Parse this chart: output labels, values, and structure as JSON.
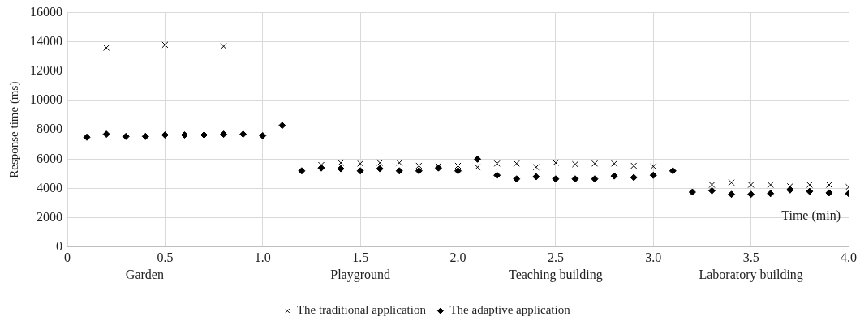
{
  "chart_data": {
    "type": "scatter",
    "xlabel": "Time (min)",
    "ylabel": "Response time (ms)",
    "xlim": [
      0,
      4
    ],
    "xticks": [
      0,
      0.5,
      {
        "value": 1,
        "label": "1.0"
      },
      1.5,
      {
        "value": 2,
        "label": "2.0"
      },
      2.5,
      {
        "value": 3,
        "label": "3.0"
      },
      3.5,
      {
        "value": 4,
        "label": "4.0"
      }
    ],
    "ylim": [
      0,
      16000
    ],
    "yticks": [
      0,
      2000,
      4000,
      6000,
      8000,
      10000,
      12000,
      14000,
      16000
    ],
    "grid": true,
    "legend": "bottom",
    "annotations": [
      "Garden",
      "Playground",
      "Teaching building",
      "Laboratory building"
    ],
    "series": [
      {
        "name": "The adaptive application",
        "color": "#000000",
        "marker": "diamond",
        "x": [
          0.1,
          0.2,
          0.3,
          0.4,
          0.5,
          0.6,
          0.7,
          0.8,
          0.9,
          1.0,
          1.1,
          1.2,
          1.3,
          1.4,
          1.5,
          1.6,
          1.7,
          1.8,
          1.9,
          2.0,
          2.1,
          2.2,
          2.3,
          2.4,
          2.5,
          2.6,
          2.7,
          2.8,
          2.9,
          3.0,
          3.1,
          3.2,
          3.3,
          3.4,
          3.5,
          3.6,
          3.7,
          3.8,
          3.9,
          4.0
        ],
        "values": [
          7500,
          7700,
          7550,
          7550,
          7650,
          7650,
          7650,
          7700,
          7700,
          7600,
          8300,
          5200,
          5400,
          5350,
          5200,
          5350,
          5200,
          5200,
          5400,
          5200,
          6000,
          4900,
          4650,
          4800,
          4650,
          4650,
          4650,
          4850,
          4750,
          4900,
          5200,
          3750,
          3850,
          3600,
          3600,
          3650,
          3900,
          3800,
          3700,
          3650
        ]
      },
      {
        "name": "The traditional application",
        "color": "#000000",
        "marker": "cross",
        "x": [
          0.2,
          0.5,
          0.8,
          1.3,
          1.4,
          1.5,
          1.6,
          1.7,
          1.8,
          1.9,
          2.0,
          2.1,
          2.2,
          2.3,
          2.4,
          2.5,
          2.6,
          2.7,
          2.8,
          2.9,
          3.0,
          3.3,
          3.4,
          3.5,
          3.6,
          3.7,
          3.8,
          3.9,
          4.0
        ],
        "values": [
          13600,
          13800,
          13700,
          5600,
          5750,
          5700,
          5750,
          5750,
          5550,
          5550,
          5550,
          5450,
          5700,
          5700,
          5450,
          5750,
          5650,
          5700,
          5700,
          5550,
          5500,
          4250,
          4400,
          4250,
          4250,
          4150,
          4250,
          4250,
          4100
        ]
      }
    ]
  }
}
